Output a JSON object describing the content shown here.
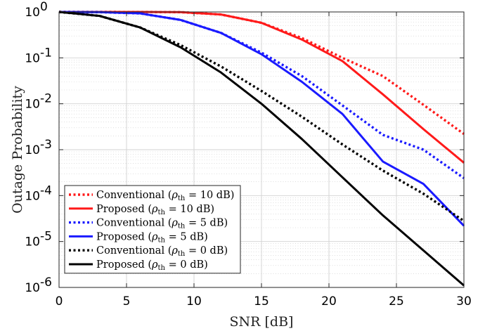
{
  "chart_data": {
    "type": "line",
    "xlabel": "SNR [dB]",
    "ylabel": "Outage Probability",
    "xlim": [
      0,
      30
    ],
    "ylim": [
      1e-06,
      1
    ],
    "yscale": "log",
    "grid": true,
    "minor_grid": true,
    "legend_position": "bottom-left",
    "x_ticks": [
      "0",
      "5",
      "10",
      "15",
      "20",
      "25",
      "30"
    ],
    "y_ticks": [
      {
        "base": "10",
        "exp": "0"
      },
      {
        "base": "10",
        "exp": "-1"
      },
      {
        "base": "10",
        "exp": "-2"
      },
      {
        "base": "10",
        "exp": "-3"
      },
      {
        "base": "10",
        "exp": "-4"
      },
      {
        "base": "10",
        "exp": "-5"
      },
      {
        "base": "10",
        "exp": "-6"
      }
    ],
    "x": [
      0,
      3,
      6,
      9,
      12,
      15,
      18,
      21,
      24,
      27,
      30
    ],
    "series": [
      {
        "name": "Conventional (ρth = 10 dB)",
        "legend_prefix": "Conventional (",
        "legend_sym": "ρ",
        "legend_sub": "th",
        "legend_suffix": " = 10 dB)",
        "color": "#ff1a1a",
        "style": "dotted",
        "values": [
          1.0,
          1.0,
          0.999,
          0.99,
          0.88,
          0.58,
          0.27,
          0.1,
          0.04,
          0.0095,
          0.0022
        ]
      },
      {
        "name": "Proposed (ρth = 10 dB)",
        "legend_prefix": "Proposed (",
        "legend_sym": "ρ",
        "legend_sub": "th",
        "legend_suffix": " = 10 dB)",
        "color": "#ff1a1a",
        "style": "solid",
        "values": [
          1.0,
          1.0,
          0.999,
          0.99,
          0.88,
          0.58,
          0.25,
          0.085,
          0.016,
          0.0028,
          0.00052
        ]
      },
      {
        "name": "Conventional (ρth = 5 dB)",
        "legend_prefix": "Conventional (",
        "legend_sym": "ρ",
        "legend_sub": "th",
        "legend_suffix": " = 5 dB)",
        "color": "#1a1aff",
        "style": "dotted",
        "values": [
          1.0,
          0.99,
          0.93,
          0.67,
          0.35,
          0.13,
          0.04,
          0.0092,
          0.0021,
          0.001,
          0.00024
        ]
      },
      {
        "name": "Proposed (ρth = 5 dB)",
        "legend_prefix": "Proposed (",
        "legend_sym": "ρ",
        "legend_sub": "th",
        "legend_suffix": " = 5 dB)",
        "color": "#1a1aff",
        "style": "solid",
        "values": [
          1.0,
          0.99,
          0.93,
          0.67,
          0.35,
          0.12,
          0.03,
          0.006,
          0.00055,
          0.00018,
          2.2e-05
        ]
      },
      {
        "name": "Conventional (ρth = 0 dB)",
        "legend_prefix": "Conventional (",
        "legend_sym": "ρ",
        "legend_sub": "th",
        "legend_suffix": " = 0 dB)",
        "color": "#000000",
        "style": "dotted",
        "values": [
          1.0,
          0.82,
          0.46,
          0.19,
          0.065,
          0.019,
          0.0052,
          0.0013,
          0.00035,
          0.00011,
          2.8e-05
        ]
      },
      {
        "name": "Proposed (ρth = 0 dB)",
        "legend_prefix": "Proposed (",
        "legend_sym": "ρ",
        "legend_sub": "th",
        "legend_suffix": " = 0 dB)",
        "color": "#000000",
        "style": "solid",
        "values": [
          1.0,
          0.82,
          0.46,
          0.17,
          0.048,
          0.01,
          0.0017,
          0.00025,
          3.7e-05,
          6.4e-06,
          1.1e-06
        ]
      }
    ]
  }
}
